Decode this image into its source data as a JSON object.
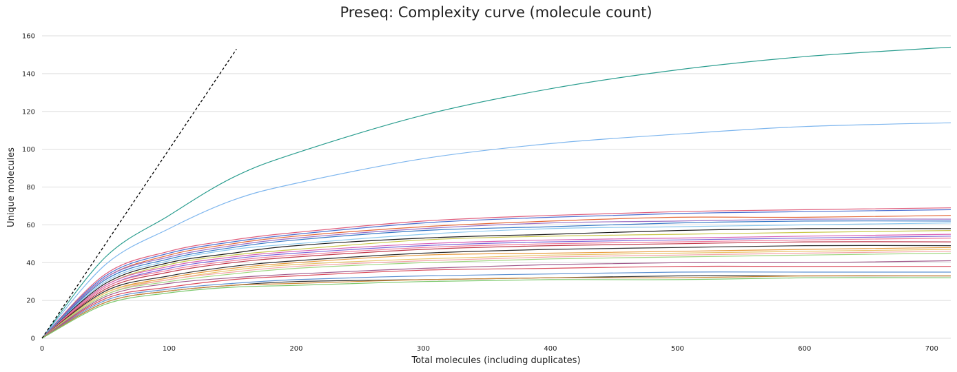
{
  "chart_data": {
    "type": "line",
    "title": "Preseq: Complexity curve (molecule count)",
    "xlabel": "Total molecules (including duplicates)",
    "ylabel": "Unique molecules",
    "xlim": [
      0,
      715
    ],
    "ylim": [
      0,
      160
    ],
    "xticks": [
      0,
      100,
      200,
      300,
      400,
      500,
      600,
      700
    ],
    "yticks": [
      0,
      20,
      40,
      60,
      80,
      100,
      120,
      140,
      160
    ],
    "grid": "horizontal",
    "reference_line": {
      "style": "dashed",
      "color": "#000000",
      "x": [
        0,
        153
      ],
      "y": [
        0,
        153
      ]
    },
    "series": [
      {
        "color": "#2a9d8f",
        "x": [
          0,
          50,
          100,
          150,
          200,
          300,
          400,
          500,
          600,
          715
        ],
        "y": [
          0,
          43,
          65,
          85,
          98,
          118,
          132,
          142,
          149,
          154
        ]
      },
      {
        "color": "#7eb6ee",
        "x": [
          0,
          50,
          100,
          150,
          200,
          300,
          400,
          500,
          600,
          715
        ],
        "y": [
          0,
          39,
          58,
          73,
          82,
          95,
          103,
          108,
          112,
          114
        ]
      },
      {
        "color": "#e05d7b",
        "x": [
          0,
          50,
          100,
          150,
          200,
          300,
          400,
          500,
          600,
          715
        ],
        "y": [
          0,
          34,
          46,
          52,
          56,
          62,
          65,
          67,
          68,
          69
        ]
      },
      {
        "color": "#4a6fd1",
        "x": [
          0,
          50,
          100,
          150,
          200,
          300,
          400,
          500,
          600,
          715
        ],
        "y": [
          0,
          33,
          45,
          51,
          55,
          61,
          64,
          66,
          67,
          68
        ]
      },
      {
        "color": "#e46a3a",
        "x": [
          0,
          50,
          100,
          150,
          200,
          300,
          400,
          500,
          600,
          715
        ],
        "y": [
          0,
          32,
          44,
          50,
          54,
          59,
          62,
          64,
          64,
          65
        ]
      },
      {
        "color": "#9a6fc4",
        "x": [
          0,
          50,
          100,
          150,
          200,
          300,
          400,
          500,
          600,
          715
        ],
        "y": [
          0,
          32,
          43,
          49,
          53,
          58,
          61,
          62,
          63,
          63
        ]
      },
      {
        "color": "#3578c6",
        "x": [
          0,
          50,
          100,
          150,
          200,
          300,
          400,
          500,
          600,
          715
        ],
        "y": [
          0,
          31,
          42,
          48,
          52,
          57,
          59,
          61,
          62,
          62
        ]
      },
      {
        "color": "#8dc9ee",
        "x": [
          0,
          50,
          100,
          150,
          200,
          300,
          400,
          500,
          600,
          715
        ],
        "y": [
          0,
          30,
          41,
          47,
          50,
          55,
          58,
          59,
          60,
          61
        ]
      },
      {
        "color": "#1c1c1c",
        "x": [
          0,
          50,
          100,
          150,
          200,
          300,
          400,
          500,
          600,
          715
        ],
        "y": [
          0,
          29,
          40,
          45,
          49,
          53,
          55,
          57,
          58,
          58
        ]
      },
      {
        "color": "#c9c74a",
        "x": [
          0,
          50,
          100,
          150,
          200,
          300,
          400,
          500,
          600,
          715
        ],
        "y": [
          0,
          28,
          39,
          44,
          47,
          52,
          54,
          55,
          56,
          57
        ]
      },
      {
        "color": "#d95fb4",
        "x": [
          0,
          50,
          100,
          150,
          200,
          300,
          400,
          500,
          600,
          715
        ],
        "y": [
          0,
          28,
          38,
          43,
          46,
          50,
          52,
          53,
          54,
          55
        ]
      },
      {
        "color": "#7b68d8",
        "x": [
          0,
          50,
          100,
          150,
          200,
          300,
          400,
          500,
          600,
          715
        ],
        "y": [
          0,
          27,
          37,
          42,
          45,
          49,
          51,
          52,
          53,
          54
        ]
      },
      {
        "color": "#f07a9a",
        "x": [
          0,
          50,
          100,
          150,
          200,
          300,
          400,
          500,
          600,
          715
        ],
        "y": [
          0,
          27,
          36,
          41,
          44,
          48,
          50,
          51,
          52,
          53
        ]
      },
      {
        "color": "#c0394b",
        "x": [
          0,
          50,
          100,
          150,
          200,
          300,
          400,
          500,
          600,
          715
        ],
        "y": [
          0,
          26,
          35,
          40,
          43,
          47,
          49,
          50,
          51,
          51
        ]
      },
      {
        "color": "#2b2b2b",
        "x": [
          0,
          50,
          100,
          150,
          200,
          300,
          400,
          500,
          600,
          715
        ],
        "y": [
          0,
          25,
          33,
          38,
          41,
          45,
          47,
          48,
          49,
          49
        ]
      },
      {
        "color": "#e89a3c",
        "x": [
          0,
          50,
          100,
          150,
          200,
          300,
          400,
          500,
          600,
          715
        ],
        "y": [
          0,
          24,
          32,
          37,
          40,
          44,
          45,
          46,
          47,
          48
        ]
      },
      {
        "color": "#e8c468",
        "x": [
          0,
          50,
          100,
          150,
          200,
          300,
          400,
          500,
          600,
          715
        ],
        "y": [
          0,
          24,
          31,
          36,
          39,
          42,
          44,
          45,
          46,
          47
        ]
      },
      {
        "color": "#f4a3a8",
        "x": [
          0,
          50,
          100,
          150,
          200,
          300,
          400,
          500,
          600,
          715
        ],
        "y": [
          0,
          23,
          31,
          35,
          38,
          41,
          43,
          44,
          45,
          46
        ]
      },
      {
        "color": "#9ed67e",
        "x": [
          0,
          50,
          100,
          150,
          200,
          300,
          400,
          500,
          600,
          715
        ],
        "y": [
          0,
          23,
          30,
          34,
          37,
          40,
          42,
          43,
          44,
          45
        ]
      },
      {
        "color": "#a05a8c",
        "x": [
          0,
          50,
          100,
          150,
          200,
          300,
          400,
          500,
          600,
          715
        ],
        "y": [
          0,
          22,
          29,
          32,
          34,
          37,
          39,
          40,
          40,
          41
        ]
      },
      {
        "color": "#d94a5a",
        "x": [
          0,
          50,
          100,
          150,
          200,
          300,
          400,
          500,
          600,
          715
        ],
        "y": [
          0,
          21,
          27,
          31,
          33,
          36,
          37,
          38,
          38,
          38
        ]
      },
      {
        "color": "#5b8fd0",
        "x": [
          0,
          50,
          100,
          150,
          200,
          300,
          400,
          500,
          600,
          715
        ],
        "y": [
          0,
          20,
          26,
          29,
          31,
          33,
          34,
          35,
          35,
          35
        ]
      },
      {
        "color": "#333333",
        "x": [
          0,
          50,
          100,
          150,
          200,
          300,
          400,
          500,
          600,
          715
        ],
        "y": [
          0,
          19,
          25,
          28,
          30,
          31,
          32,
          33,
          33,
          33
        ]
      },
      {
        "color": "#d08a3a",
        "x": [
          0,
          50,
          100,
          150,
          200,
          300,
          400,
          500,
          600,
          715
        ],
        "y": [
          0,
          19,
          25,
          28,
          29,
          31,
          32,
          32,
          33,
          33
        ]
      },
      {
        "color": "#7bc86c",
        "x": [
          0,
          50,
          100,
          150,
          200,
          300,
          400,
          500,
          600,
          715
        ],
        "y": [
          0,
          18,
          24,
          27,
          28,
          30,
          31,
          31,
          32,
          32
        ]
      }
    ]
  }
}
